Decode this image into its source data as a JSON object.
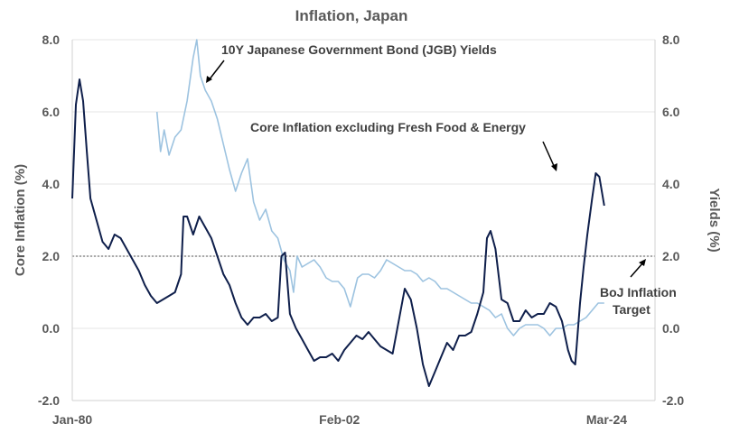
{
  "chart_data": {
    "type": "line",
    "title": "Inflation, Japan",
    "ylabel_left": "Core Inflation (%)",
    "ylabel_right": "Yields (%)",
    "x_tick_labels": [
      "Jan-80",
      "Feb-02",
      "Mar-24"
    ],
    "x_range": [
      1980.0,
      2028.2
    ],
    "ylim_left": [
      -2.0,
      8.0
    ],
    "ylim_right": [
      -2.0,
      8.0
    ],
    "y_ticks": [
      "-2.0",
      "0.0",
      "2.0",
      "4.0",
      "6.0",
      "8.0"
    ],
    "y_tick_values": [
      -2,
      0,
      2,
      4,
      6,
      8
    ],
    "grid": true,
    "reference_line": {
      "value": 2.0,
      "style": "dashed"
    },
    "annotations": {
      "jgb": "10Y Japanese Government Bond (JGB) Yields",
      "core": "Core Inflation excluding Fresh Food & Energy",
      "boj_line1": "BoJ Inflation",
      "boj_line2": "Target"
    },
    "colors": {
      "core": "#0f1f4b",
      "jgb": "#9dc3e0",
      "axis_text": "#595959",
      "grid": "#e6e6e6",
      "target_line": "#555555"
    },
    "series": [
      {
        "key": "core",
        "color": "#0f1f4b",
        "x": [
          1980.0,
          1980.3,
          1980.6,
          1980.9,
          1981.2,
          1981.5,
          1982.0,
          1982.5,
          1983.0,
          1983.5,
          1984.0,
          1984.5,
          1985.0,
          1985.5,
          1986.0,
          1986.5,
          1987.0,
          1987.5,
          1988.0,
          1988.5,
          1989.0,
          1989.2,
          1989.5,
          1990.0,
          1990.5,
          1991.0,
          1991.5,
          1992.0,
          1992.5,
          1993.0,
          1993.5,
          1994.0,
          1994.5,
          1995.0,
          1995.5,
          1996.0,
          1996.5,
          1997.0,
          1997.3,
          1997.6,
          1998.0,
          1998.5,
          1999.0,
          1999.5,
          2000.0,
          2000.5,
          2001.0,
          2001.5,
          2002.0,
          2002.5,
          2003.0,
          2003.5,
          2004.0,
          2004.5,
          2005.0,
          2005.5,
          2006.0,
          2006.5,
          2007.0,
          2007.5,
          2008.0,
          2008.5,
          2009.0,
          2009.5,
          2010.0,
          2010.5,
          2011.0,
          2011.5,
          2012.0,
          2012.5,
          2013.0,
          2013.5,
          2014.0,
          2014.3,
          2014.6,
          2015.0,
          2015.5,
          2016.0,
          2016.5,
          2017.0,
          2017.5,
          2018.0,
          2018.5,
          2019.0,
          2019.5,
          2020.0,
          2020.5,
          2021.0,
          2021.3,
          2021.6,
          2022.0,
          2022.3,
          2022.6,
          2023.0,
          2023.3,
          2023.6,
          2024.0
        ],
        "values": [
          3.6,
          6.2,
          6.9,
          6.3,
          4.9,
          3.6,
          3.0,
          2.4,
          2.2,
          2.6,
          2.5,
          2.2,
          1.9,
          1.6,
          1.2,
          0.9,
          0.7,
          0.8,
          0.9,
          1.0,
          1.5,
          3.1,
          3.1,
          2.6,
          3.1,
          2.8,
          2.5,
          2.0,
          1.5,
          1.2,
          0.7,
          0.3,
          0.1,
          0.3,
          0.3,
          0.4,
          0.2,
          0.3,
          2.0,
          2.1,
          0.4,
          0.0,
          -0.3,
          -0.6,
          -0.9,
          -0.8,
          -0.8,
          -0.7,
          -0.9,
          -0.6,
          -0.4,
          -0.2,
          -0.3,
          -0.1,
          -0.3,
          -0.5,
          -0.6,
          -0.7,
          0.2,
          1.1,
          0.8,
          0.0,
          -1.0,
          -1.6,
          -1.2,
          -0.8,
          -0.4,
          -0.6,
          -0.2,
          -0.2,
          -0.1,
          0.4,
          1.0,
          2.5,
          2.7,
          2.2,
          0.8,
          0.7,
          0.2,
          0.2,
          0.5,
          0.3,
          0.4,
          0.4,
          0.7,
          0.6,
          0.2,
          -0.6,
          -0.9,
          -1.0,
          0.7,
          1.7,
          2.6,
          3.6,
          4.3,
          4.2,
          3.4
        ]
      },
      {
        "key": "jgb",
        "color": "#9dc3e0",
        "x": [
          1987.0,
          1987.3,
          1987.6,
          1988.0,
          1988.5,
          1989.0,
          1989.5,
          1990.0,
          1990.3,
          1990.6,
          1991.0,
          1991.5,
          1992.0,
          1992.5,
          1993.0,
          1993.5,
          1994.0,
          1994.5,
          1995.0,
          1995.5,
          1996.0,
          1996.5,
          1997.0,
          1997.5,
          1998.0,
          1998.3,
          1998.6,
          1999.0,
          1999.5,
          2000.0,
          2000.5,
          2001.0,
          2001.5,
          2002.0,
          2002.5,
          2003.0,
          2003.3,
          2003.6,
          2004.0,
          2004.5,
          2005.0,
          2005.5,
          2006.0,
          2006.5,
          2007.0,
          2007.5,
          2008.0,
          2008.5,
          2009.0,
          2009.5,
          2010.0,
          2010.5,
          2011.0,
          2011.5,
          2012.0,
          2012.5,
          2013.0,
          2013.5,
          2014.0,
          2014.5,
          2015.0,
          2015.5,
          2016.0,
          2016.5,
          2017.0,
          2017.5,
          2018.0,
          2018.5,
          2019.0,
          2019.5,
          2020.0,
          2020.5,
          2021.0,
          2021.5,
          2022.0,
          2022.5,
          2023.0,
          2023.5,
          2024.0
        ],
        "values": [
          6.0,
          4.9,
          5.5,
          4.8,
          5.3,
          5.5,
          6.3,
          7.5,
          8.0,
          7.0,
          6.6,
          6.3,
          5.8,
          5.1,
          4.4,
          3.8,
          4.3,
          4.7,
          3.5,
          3.0,
          3.3,
          2.7,
          2.5,
          1.9,
          1.6,
          1.0,
          2.0,
          1.7,
          1.8,
          1.9,
          1.7,
          1.4,
          1.3,
          1.3,
          1.1,
          0.6,
          1.0,
          1.4,
          1.5,
          1.5,
          1.4,
          1.6,
          1.9,
          1.8,
          1.7,
          1.6,
          1.6,
          1.5,
          1.3,
          1.4,
          1.3,
          1.1,
          1.1,
          1.0,
          0.9,
          0.8,
          0.7,
          0.7,
          0.6,
          0.5,
          0.3,
          0.4,
          0.0,
          -0.2,
          0.0,
          0.1,
          0.1,
          0.1,
          0.0,
          -0.2,
          0.0,
          0.0,
          0.1,
          0.1,
          0.2,
          0.3,
          0.5,
          0.7,
          0.7
        ]
      }
    ]
  }
}
